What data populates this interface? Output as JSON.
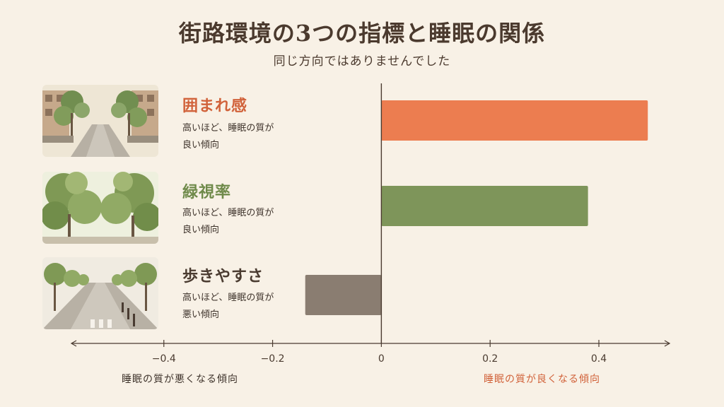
{
  "header": {
    "title": "街路環境の3つの指標と睡眠の関係",
    "subtitle": "同じ方向ではありませんでした"
  },
  "factors": [
    {
      "name": "囲まれ感",
      "name_color": "#d1623a",
      "desc_line1": "高いほど、睡眠の質が",
      "desc_line2": "良い傾向",
      "illustration": "tree-lined-residential-street"
    },
    {
      "name": "緑視率",
      "name_color": "#6f8a4a",
      "desc_line1": "高いほど、睡眠の質が",
      "desc_line2": "良い傾向",
      "illustration": "dense-tree-canopy"
    },
    {
      "name": "歩きやすさ",
      "name_color": "#4a3b30",
      "desc_line1": "高いほど、睡眠の質が",
      "desc_line2": "悪い傾向",
      "illustration": "wide-sidewalk-street"
    }
  ],
  "captions": {
    "left": "睡眠の質が悪くなる傾向",
    "right": "睡眠の質が良くなる傾向"
  },
  "chart_data": {
    "type": "bar",
    "orientation": "horizontal",
    "categories": [
      "囲まれ感",
      "緑視率",
      "歩きやすさ"
    ],
    "values": [
      0.49,
      0.38,
      -0.14
    ],
    "colors": [
      "#ec7d50",
      "#7e955a",
      "#8a7d71"
    ],
    "xlim": [
      -0.57,
      0.53
    ],
    "xticks": [
      -0.4,
      -0.2,
      0,
      0.2,
      0.4
    ],
    "xtick_labels": [
      "−0.4",
      "−0.2",
      "0",
      "0.2",
      "0.4"
    ],
    "grid": false
  }
}
